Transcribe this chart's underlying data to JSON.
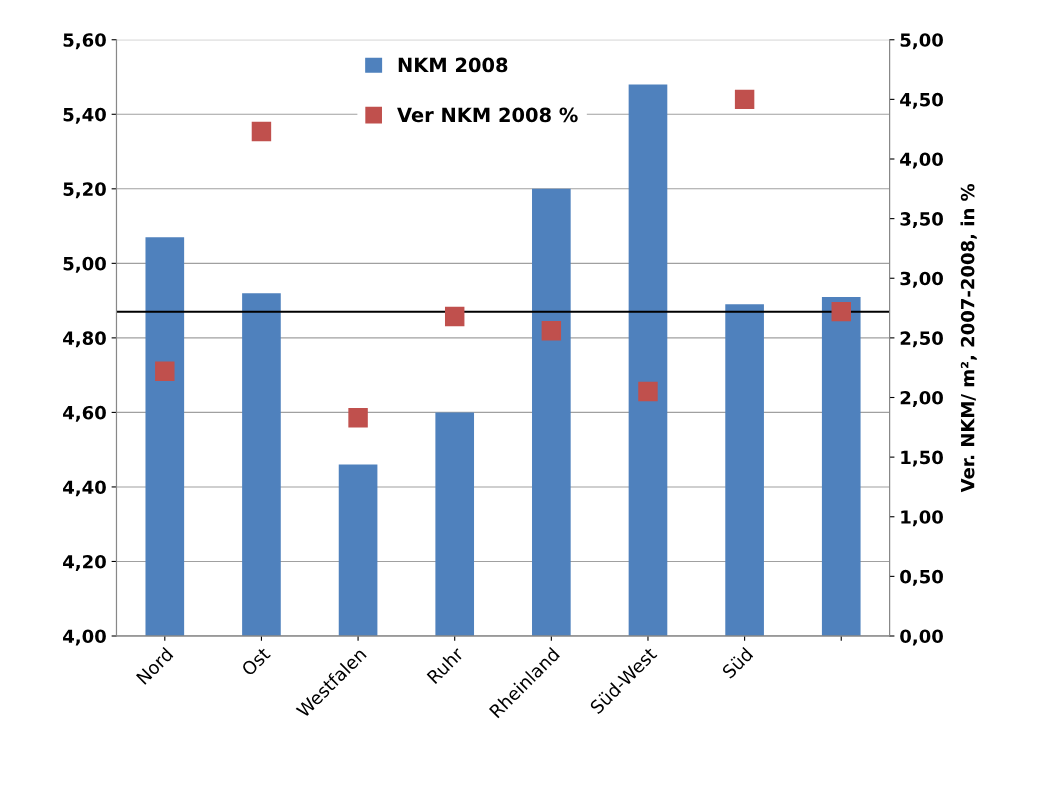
{
  "chart_data": {
    "type": "bar",
    "categories": [
      "Nord",
      "Ost",
      "Westfalen",
      "Ruhr",
      "Rheinland",
      "Süd-West",
      "Süd",
      null
    ],
    "series": [
      {
        "name": "NKM 2008",
        "color": "#4f81bd",
        "values": [
          5.07,
          4.92,
          4.46,
          4.6,
          5.2,
          5.48,
          4.89,
          4.91
        ]
      },
      {
        "name": "Ver NKM 2008 %",
        "type": "scatter",
        "axis": "y2",
        "marker": "square",
        "color": "#c0504d",
        "values": [
          2.22,
          4.23,
          1.83,
          2.68,
          2.56,
          2.05,
          4.5,
          2.72
        ]
      }
    ],
    "y2label": "Ver. NKM/ m², 2007-2008, in %",
    "ylim": [
      4.0,
      5.6
    ],
    "yticks": [
      {
        "value": 4.0,
        "label": "4,00"
      },
      {
        "value": 4.2,
        "label": "4,20"
      },
      {
        "value": 4.4,
        "label": "4,40"
      },
      {
        "value": 4.6,
        "label": "4,60"
      },
      {
        "value": 4.8,
        "label": "4,80"
      },
      {
        "value": 5.0,
        "label": "5,00"
      },
      {
        "value": 5.2,
        "label": "5,20"
      },
      {
        "value": 5.4,
        "label": "5,40"
      },
      {
        "value": 5.6,
        "label": "5,60"
      }
    ],
    "y2lim": [
      0,
      5
    ],
    "y2ticks": [
      {
        "value": 0,
        "label": "0,00"
      },
      {
        "value": 0.5,
        "label": "0,50"
      },
      {
        "value": 1,
        "label": "1,00"
      },
      {
        "value": 1.5,
        "label": "1,50"
      },
      {
        "value": 2,
        "label": "2,00"
      },
      {
        "value": 2.5,
        "label": "2,50"
      },
      {
        "value": 3,
        "label": "3,00"
      },
      {
        "value": 3.5,
        "label": "3,50"
      },
      {
        "value": 4,
        "label": "4,00"
      },
      {
        "value": 4.5,
        "label": "4,50"
      },
      {
        "value": 5,
        "label": "5,00"
      }
    ],
    "ref_lines": [
      {
        "axis": "y",
        "value": 4.87,
        "color": "#000000"
      }
    ],
    "grid": "y",
    "legend": "top"
  }
}
